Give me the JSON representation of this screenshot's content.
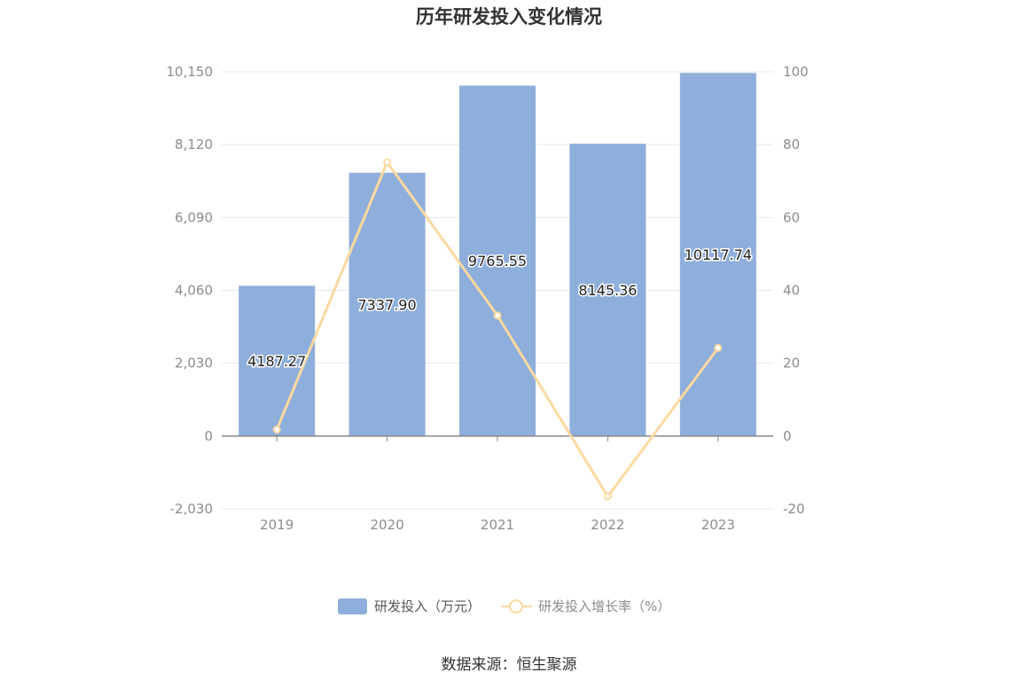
{
  "chart_data": {
    "type": "bar",
    "title": "历年研发投入变化情况",
    "categories": [
      "2019",
      "2020",
      "2021",
      "2022",
      "2023"
    ],
    "series": [
      {
        "name": "研发投入（万元）",
        "type": "bar",
        "axis": "left",
        "color": "#8eaedb",
        "values": [
          4187.27,
          7337.9,
          9765.55,
          8145.36,
          10117.74
        ],
        "labels": [
          "4187.27",
          "7337.90",
          "9765.55",
          "8145.36",
          "10117.74"
        ]
      },
      {
        "name": "研发投入增长率（%）",
        "type": "line",
        "axis": "right",
        "color": "#fcd9a0",
        "values": [
          1.8,
          75.2,
          33.1,
          -16.6,
          24.2
        ]
      }
    ],
    "y_left": {
      "min": -2030,
      "max": 10150,
      "ticks": [
        -2030,
        0,
        2030,
        4060,
        6090,
        8120,
        10150
      ],
      "tick_labels": [
        "-2,030",
        "0",
        "2,030",
        "4,060",
        "6,090",
        "8,120",
        "10,150"
      ]
    },
    "y_right": {
      "min": -20,
      "max": 100,
      "ticks": [
        -20,
        0,
        20,
        40,
        60,
        80,
        100
      ],
      "tick_labels": [
        "-20",
        "0",
        "20",
        "40",
        "60",
        "80",
        "100"
      ]
    },
    "grid": true,
    "legend_position": "bottom"
  },
  "source_text": "数据来源：恒生聚源"
}
